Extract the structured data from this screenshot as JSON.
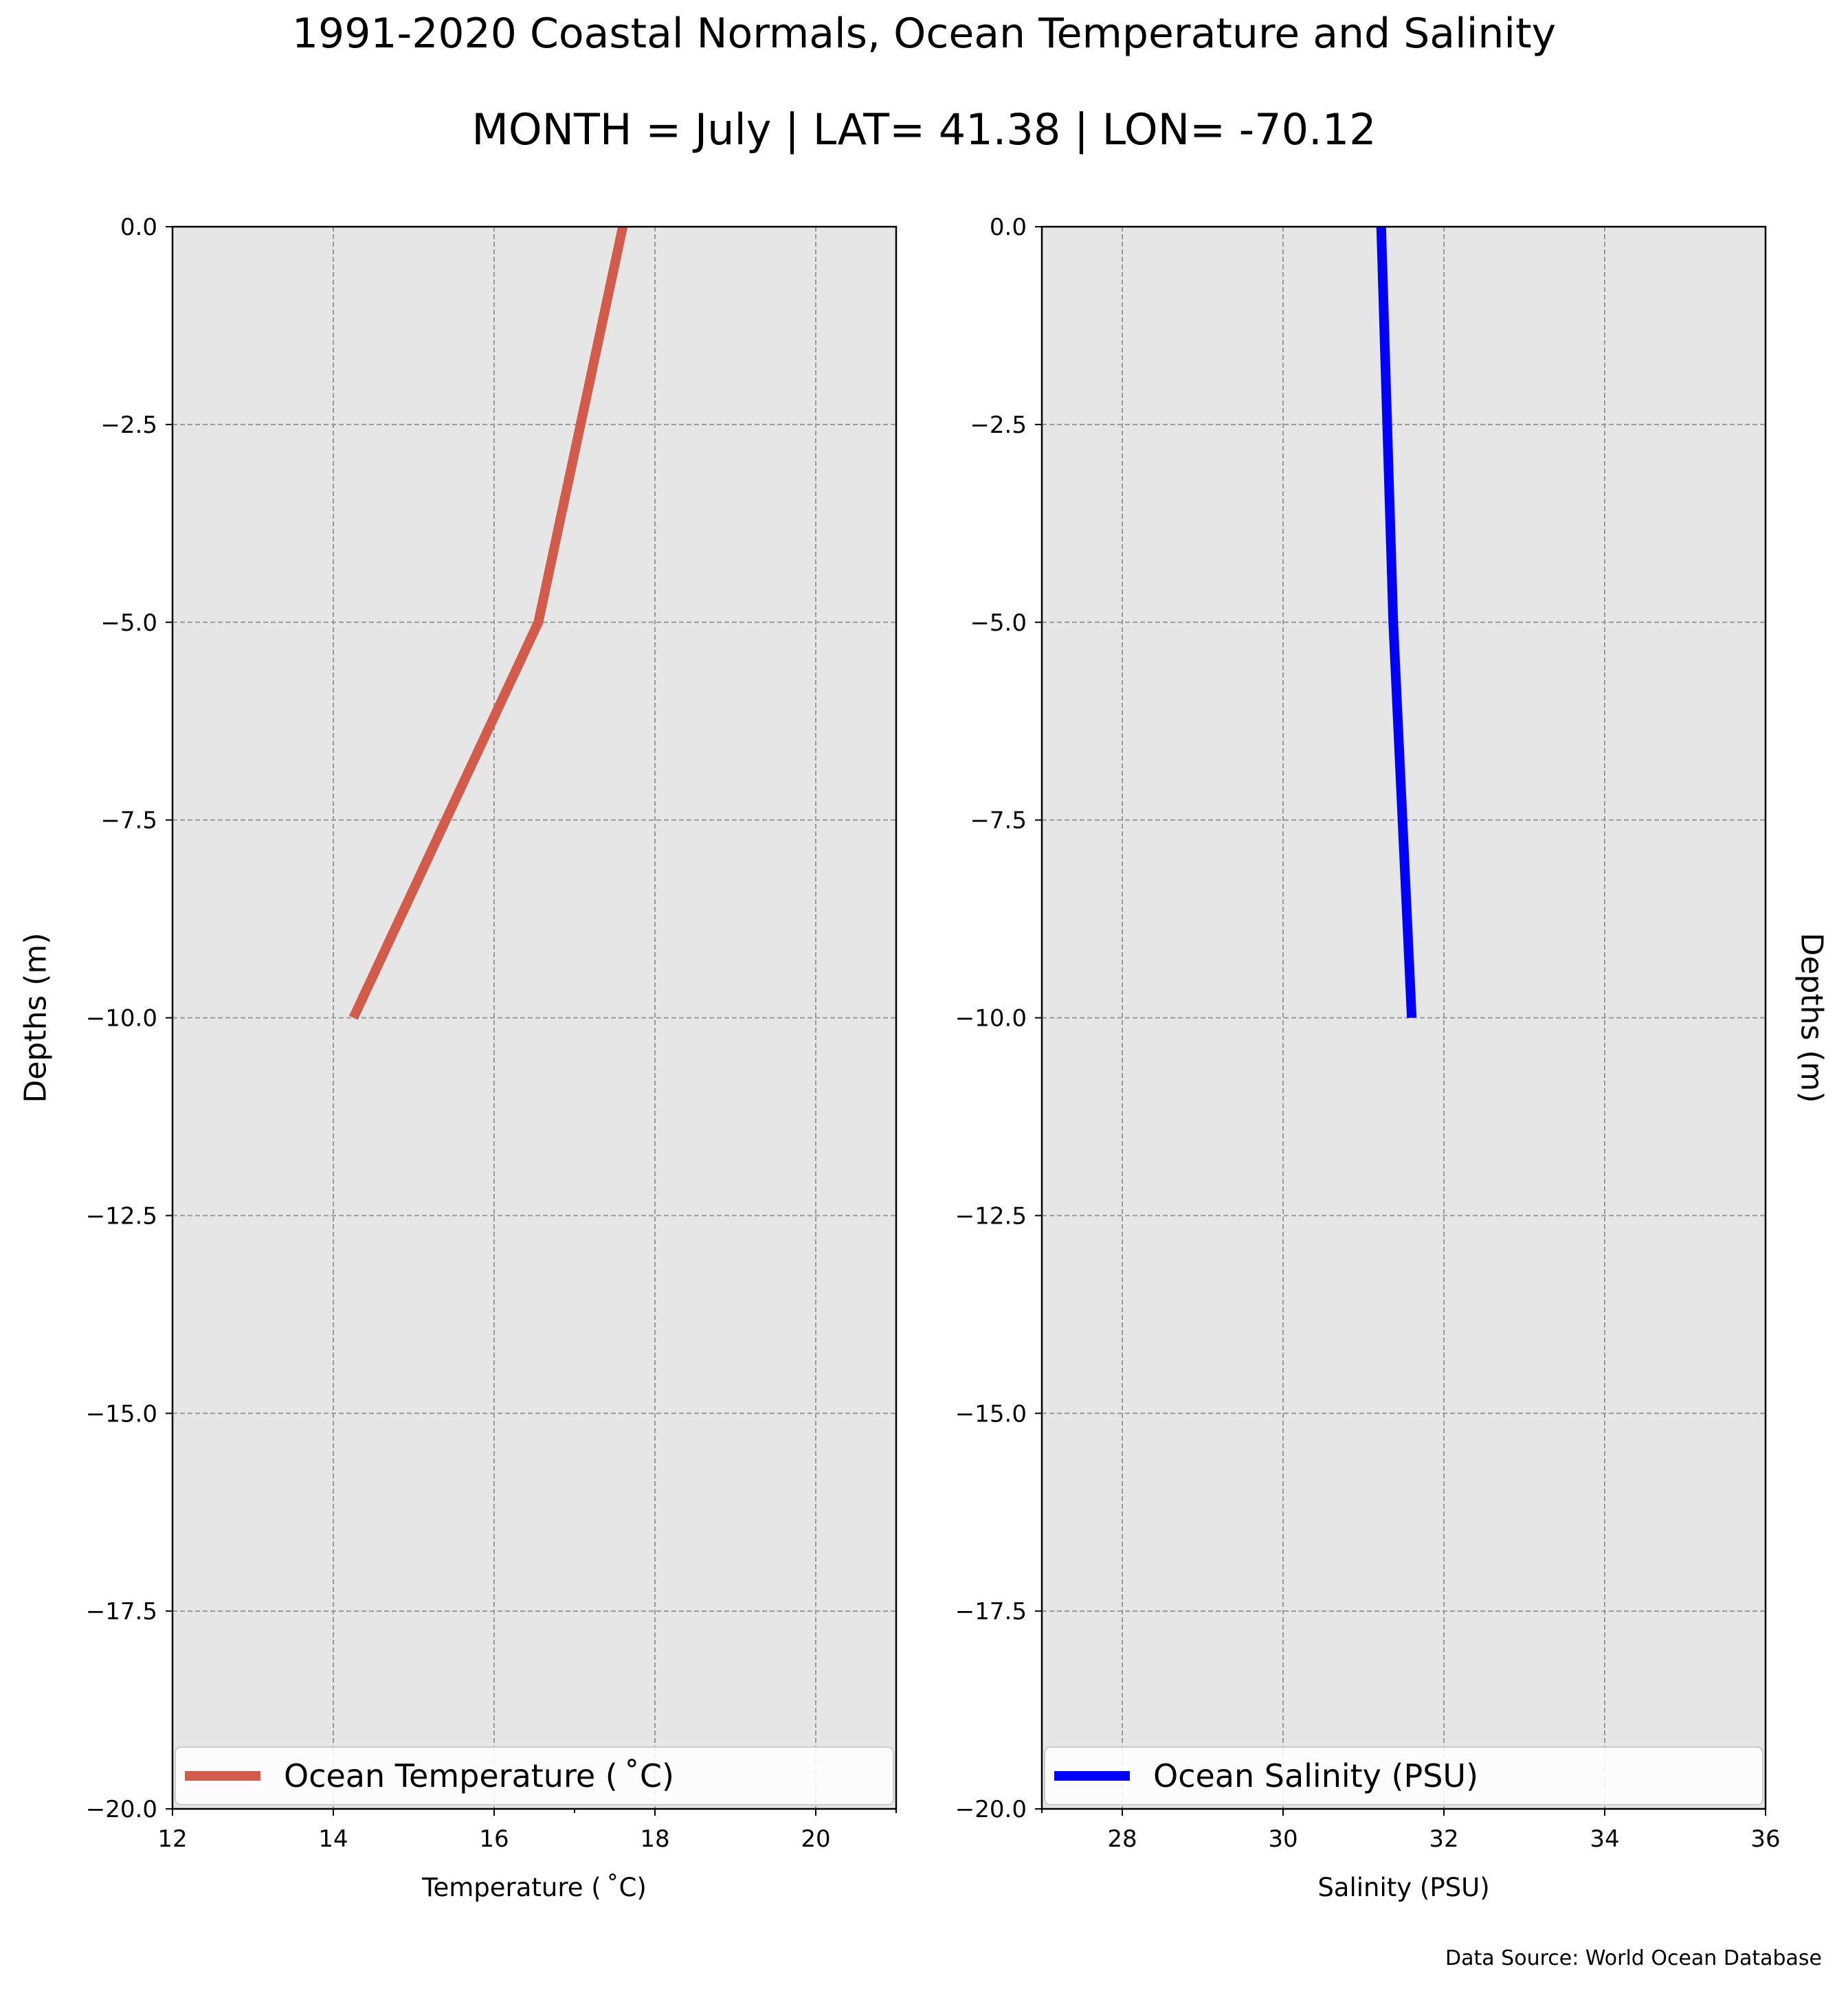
{
  "figure": {
    "title": "1991-2020 Coastal Normals, Ocean Temperature and Salinity",
    "subtitle": "MONTH = July | LAT= 41.38 | LON= -70.12",
    "source_note": "Data Source: World Ocean Database",
    "colors": {
      "background": "#ffffff",
      "axes_face": "#e6e6e6",
      "grid": "#999999"
    }
  },
  "chart_data": [
    {
      "type": "line",
      "xlabel": "Temperature ($^\\circ$C)",
      "xlabel_display": "Temperature ( ˚C)",
      "ylabel": "Depths (m)",
      "xlim": [
        12,
        21
      ],
      "ylim": [
        -20,
        0
      ],
      "xticks": [
        12,
        14,
        16,
        18,
        20
      ],
      "xtick_labels": [
        "12",
        "14",
        "16",
        "18",
        "20"
      ],
      "yticks": [
        0,
        -2.5,
        -5,
        -7.5,
        -10,
        -12.5,
        -15,
        -17.5,
        -20
      ],
      "ytick_labels": [
        "0.0",
        "−2.5",
        "−5.0",
        "−7.5",
        "−10.0",
        "−12.5",
        "−15.0",
        "−17.5",
        "−20.0"
      ],
      "grid": true,
      "legend": {
        "placement": "lower center",
        "label": "Ocean Temperature ( ˚C)"
      },
      "series": [
        {
          "name": "Ocean Temperature ( ˚C)",
          "color": "#d35b4b",
          "x": [
            17.6,
            16.55,
            14.25
          ],
          "y": [
            0,
            -5,
            -10
          ]
        }
      ]
    },
    {
      "type": "line",
      "xlabel": "Salinity (PSU)",
      "ylabel": "Depths (m)",
      "ylabel_side": "right",
      "xlim": [
        27,
        36
      ],
      "ylim": [
        -20,
        0
      ],
      "xticks": [
        28,
        30,
        32,
        34,
        36
      ],
      "xtick_labels": [
        "28",
        "30",
        "32",
        "34",
        "36"
      ],
      "yticks": [
        0,
        -2.5,
        -5,
        -7.5,
        -10,
        -12.5,
        -15,
        -17.5,
        -20
      ],
      "ytick_labels": [
        "0.0",
        "−2.5",
        "−5.0",
        "−7.5",
        "−10.0",
        "−12.5",
        "−15.0",
        "−17.5",
        "−20.0"
      ],
      "grid": true,
      "legend": {
        "placement": "lower center",
        "label": "Ocean Salinity (PSU)"
      },
      "series": [
        {
          "name": "Ocean Salinity (PSU)",
          "color": "#0000ff",
          "x": [
            31.22,
            31.37,
            31.6
          ],
          "y": [
            0,
            -5,
            -10
          ]
        }
      ]
    }
  ]
}
